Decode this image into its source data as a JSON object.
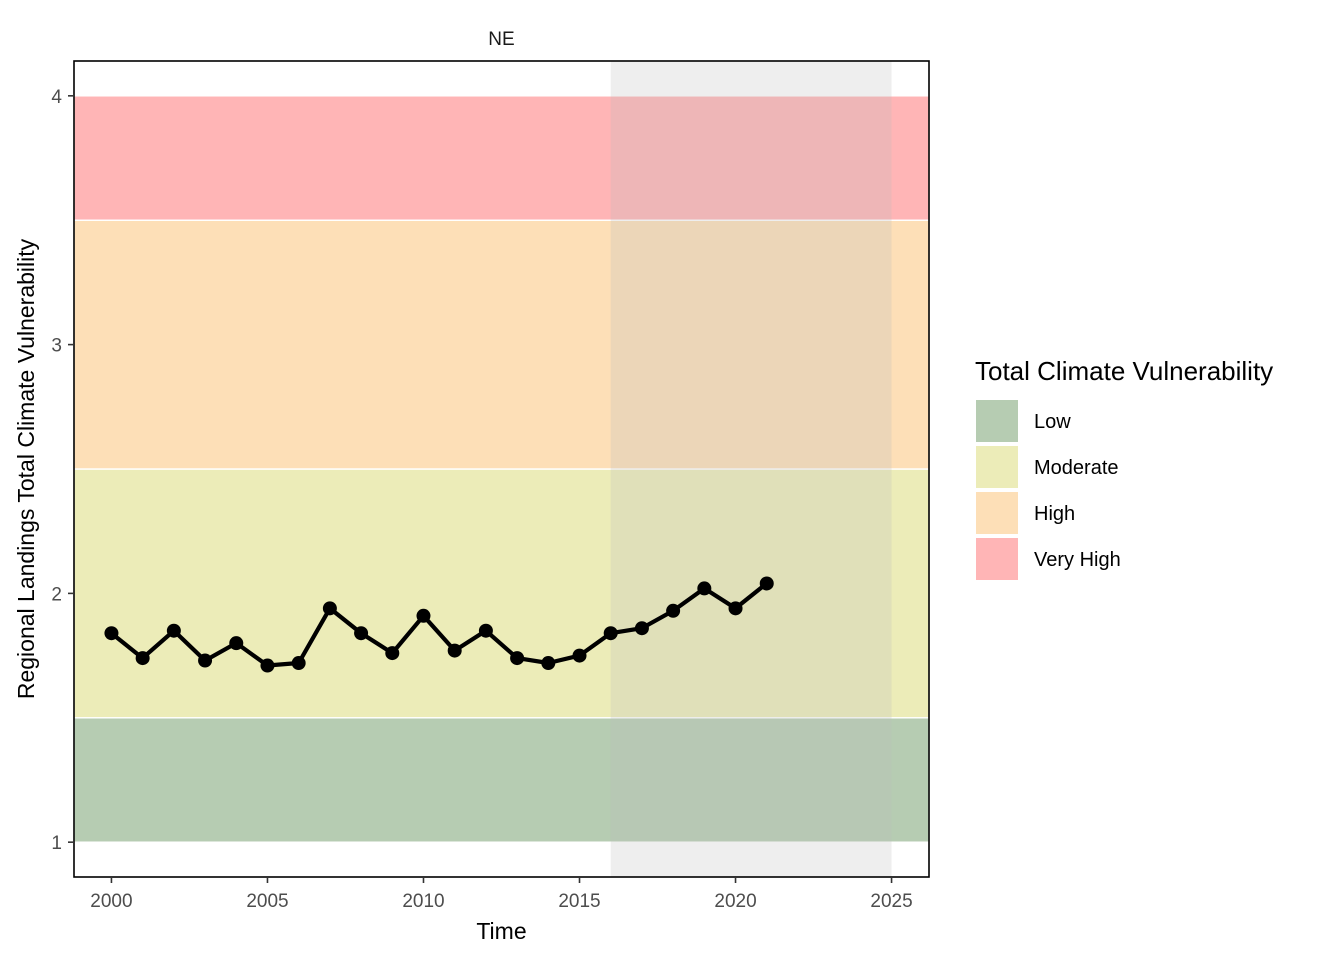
{
  "chart_data": {
    "type": "line",
    "facet_label": "NE",
    "xlabel": "Time",
    "ylabel": "Regional Landings Total Climate Vulnerability",
    "xlim": [
      1998.8,
      2026.2
    ],
    "ylim": [
      0.86,
      4.14
    ],
    "x_ticks": [
      2000,
      2005,
      2010,
      2015,
      2020,
      2025
    ],
    "y_ticks": [
      1,
      2,
      3,
      4
    ],
    "shaded_period": {
      "from": 2016,
      "to": 2025,
      "color": "#bdbdbd"
    },
    "bands": [
      {
        "name": "Low",
        "from": 1.0,
        "to": 1.5,
        "color": "#b6ccb2"
      },
      {
        "name": "Moderate",
        "from": 1.5,
        "to": 2.5,
        "color": "#ececb8"
      },
      {
        "name": "High",
        "from": 2.5,
        "to": 3.5,
        "color": "#fddfb7"
      },
      {
        "name": "Very High",
        "from": 3.5,
        "to": 4.0,
        "color": "#ffb5b6"
      }
    ],
    "series": [
      {
        "color": "#000000",
        "x": [
          2000,
          2001,
          2002,
          2003,
          2004,
          2005,
          2006,
          2007,
          2008,
          2009,
          2010,
          2011,
          2012,
          2013,
          2014,
          2015,
          2016,
          2017,
          2018,
          2019,
          2020,
          2021
        ],
        "y": [
          1.84,
          1.74,
          1.85,
          1.73,
          1.8,
          1.71,
          1.72,
          1.94,
          1.84,
          1.76,
          1.91,
          1.77,
          1.85,
          1.74,
          1.72,
          1.75,
          1.84,
          1.86,
          1.93,
          2.02,
          1.94,
          2.04
        ]
      }
    ],
    "legend": {
      "title": "Total Climate Vulnerability",
      "position": "right",
      "items": [
        "Low",
        "Moderate",
        "High",
        "Very High"
      ]
    },
    "grid": false
  }
}
